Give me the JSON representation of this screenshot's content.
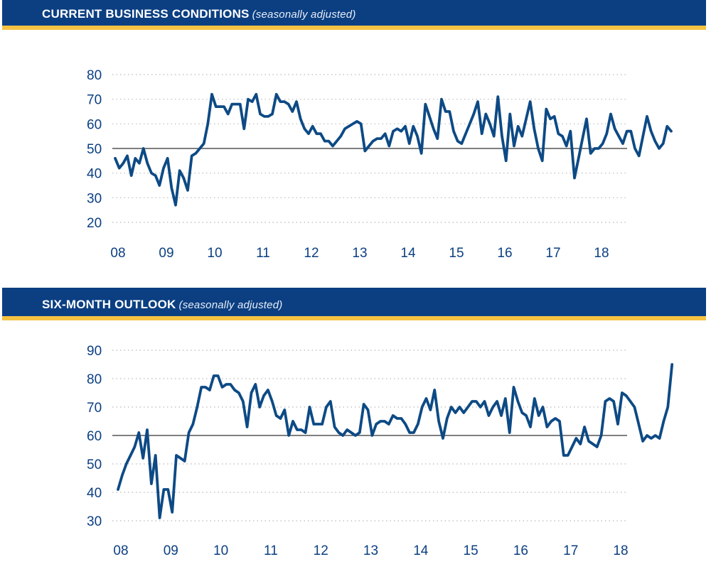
{
  "colors": {
    "banner": "#0b3f82",
    "banner_rule": "#f5c242",
    "line": "#0d4a85",
    "axis_text": "#0b3f82"
  },
  "charts": [
    {
      "title": "CURRENT BUSINESS CONDITIONS",
      "subtitle": "(seasonally adjusted)"
    },
    {
      "title": "SIX-MONTH OUTLOOK",
      "subtitle": "(seasonally adjusted)"
    }
  ],
  "chart_data": [
    {
      "type": "line",
      "title": "CURRENT BUSINESS CONDITIONS (seasonally adjusted)",
      "xlabel": "",
      "ylabel": "",
      "x_ticks": [
        "08",
        "09",
        "10",
        "11",
        "12",
        "13",
        "14",
        "15",
        "16",
        "17",
        "18"
      ],
      "x_range": [
        2008,
        2018
      ],
      "y_ticks": [
        20,
        30,
        40,
        50,
        60,
        70,
        80
      ],
      "ylim": [
        20,
        80
      ],
      "grid": true,
      "reference_line": 50,
      "series": [
        {
          "name": "Current Business Conditions",
          "start": "2008-01",
          "frequency": "monthly",
          "values": [
            46,
            42,
            44,
            47,
            39,
            46,
            44,
            50,
            44,
            40,
            39,
            35,
            42,
            46,
            34,
            27,
            41,
            38,
            33,
            47,
            48,
            50,
            52,
            60,
            72,
            67,
            67,
            67,
            64,
            68,
            68,
            68,
            58,
            70,
            69,
            72,
            64,
            63,
            63,
            64,
            72,
            69,
            69,
            68,
            65,
            69,
            62,
            58,
            56,
            59,
            56,
            56,
            53,
            53,
            51,
            53,
            55,
            58,
            59,
            60,
            61,
            60,
            49,
            51,
            53,
            54,
            54,
            56,
            51,
            57,
            58,
            57,
            59,
            52,
            59,
            55,
            48,
            68,
            63,
            58,
            54,
            70,
            65,
            65,
            57,
            53,
            52,
            56,
            60,
            64,
            69,
            56,
            64,
            60,
            55,
            71,
            55,
            45,
            64,
            51,
            59,
            55,
            62,
            69,
            58,
            50,
            45,
            66,
            62,
            63,
            56,
            55,
            51,
            57,
            38,
            46,
            54,
            62,
            48,
            50,
            50,
            52,
            56,
            64,
            58,
            55,
            52,
            57,
            57,
            50,
            47,
            55,
            63,
            57,
            53,
            50,
            52,
            59,
            57
          ]
        }
      ]
    },
    {
      "type": "line",
      "title": "SIX-MONTH OUTLOOK (seasonally adjusted)",
      "xlabel": "",
      "ylabel": "",
      "x_ticks": [
        "08",
        "09",
        "10",
        "11",
        "12",
        "13",
        "14",
        "15",
        "16",
        "17",
        "18"
      ],
      "x_range": [
        2008,
        2018
      ],
      "y_ticks": [
        30,
        40,
        50,
        60,
        70,
        80,
        90
      ],
      "ylim": [
        30,
        90
      ],
      "grid": true,
      "reference_line": 60,
      "series": [
        {
          "name": "Six-Month Outlook",
          "start": "2008-01",
          "frequency": "monthly",
          "values": [
            41,
            46,
            50,
            53,
            56,
            61,
            52,
            62,
            43,
            53,
            31,
            41,
            41,
            33,
            53,
            52,
            51,
            61,
            64,
            70,
            77,
            77,
            76,
            81,
            81,
            77,
            78,
            78,
            76,
            75,
            72,
            63,
            75,
            78,
            70,
            74,
            76,
            72,
            67,
            66,
            69,
            60,
            65,
            62,
            62,
            61,
            70,
            64,
            64,
            64,
            70,
            72,
            63,
            61,
            60,
            62,
            61,
            60,
            61,
            71,
            69,
            60,
            64,
            65,
            65,
            64,
            67,
            66,
            66,
            64,
            61,
            61,
            64,
            70,
            73,
            69,
            76,
            65,
            59,
            66,
            70,
            68,
            70,
            68,
            70,
            72,
            72,
            70,
            72,
            67,
            70,
            72,
            67,
            73,
            61,
            77,
            72,
            68,
            67,
            63,
            73,
            67,
            70,
            63,
            65,
            66,
            65,
            53,
            53,
            56,
            59,
            57,
            63,
            58,
            57,
            56,
            60,
            72,
            73,
            72,
            64,
            75,
            74,
            72,
            70,
            64,
            58,
            60,
            59,
            60,
            59,
            65,
            70,
            85
          ]
        }
      ]
    }
  ]
}
